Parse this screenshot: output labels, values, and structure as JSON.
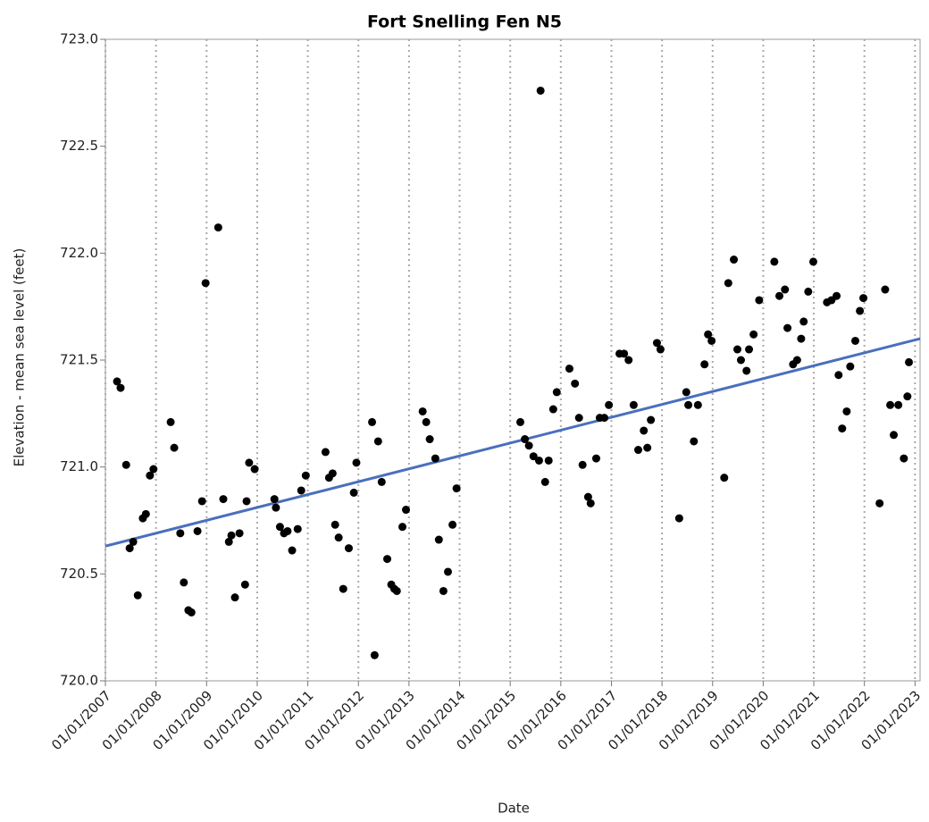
{
  "chart_data": {
    "type": "scatter",
    "title": "Fort Snelling Fen N5",
    "xlabel": "Date",
    "ylabel": "Elevation - mean sea level (feet)",
    "color": "#000000",
    "x": [
      2007.23,
      2007.3,
      2007.41,
      2007.48,
      2007.55,
      2007.64,
      2007.74,
      2007.8,
      2007.88,
      2007.95,
      2008.29,
      2008.36,
      2008.48,
      2008.55,
      2008.64,
      2008.7,
      2008.82,
      2008.91,
      2008.98,
      2009.23,
      2009.33,
      2009.44,
      2009.49,
      2009.56,
      2009.65,
      2009.76,
      2009.79,
      2009.84,
      2009.95,
      2010.34,
      2010.37,
      2010.45,
      2010.53,
      2010.6,
      2010.69,
      2010.8,
      2010.87,
      2010.96,
      2011.35,
      2011.42,
      2011.49,
      2011.54,
      2011.61,
      2011.7,
      2011.81,
      2011.91,
      2011.96,
      2012.27,
      2012.32,
      2012.39,
      2012.46,
      2012.57,
      2012.65,
      2012.71,
      2012.76,
      2012.87,
      2012.94,
      2013.27,
      2013.34,
      2013.41,
      2013.52,
      2013.59,
      2013.68,
      2013.77,
      2013.86,
      2013.94,
      2015.2,
      2015.29,
      2015.37,
      2015.46,
      2015.57,
      2015.6,
      2015.69,
      2015.76,
      2015.85,
      2015.92,
      2016.17,
      2016.28,
      2016.36,
      2016.43,
      2016.54,
      2016.59,
      2016.7,
      2016.77,
      2016.86,
      2016.95,
      2017.16,
      2017.25,
      2017.34,
      2017.44,
      2017.53,
      2017.64,
      2017.71,
      2017.78,
      2017.9,
      2017.97,
      2018.34,
      2018.48,
      2018.52,
      2018.63,
      2018.71,
      2018.84,
      2018.91,
      2018.98,
      2019.23,
      2019.31,
      2019.42,
      2019.49,
      2019.56,
      2019.67,
      2019.72,
      2019.81,
      2019.92,
      2020.22,
      2020.32,
      2020.43,
      2020.48,
      2020.59,
      2020.67,
      2020.75,
      2020.8,
      2020.89,
      2020.99,
      2021.26,
      2021.35,
      2021.45,
      2021.49,
      2021.56,
      2021.65,
      2021.72,
      2021.82,
      2021.91,
      2021.98,
      2022.3,
      2022.41,
      2022.51,
      2022.58,
      2022.67,
      2022.78,
      2022.85,
      2022.88
    ],
    "values": [
      721.4,
      721.37,
      721.01,
      720.62,
      720.65,
      720.4,
      720.76,
      720.78,
      720.96,
      720.99,
      721.21,
      721.09,
      720.69,
      720.46,
      720.33,
      720.32,
      720.7,
      720.84,
      721.86,
      722.12,
      720.85,
      720.65,
      720.68,
      720.39,
      720.69,
      720.45,
      720.84,
      721.02,
      720.99,
      720.85,
      720.81,
      720.72,
      720.69,
      720.7,
      720.61,
      720.71,
      720.89,
      720.96,
      721.07,
      720.95,
      720.97,
      720.73,
      720.67,
      720.43,
      720.62,
      720.88,
      721.02,
      721.21,
      720.12,
      721.12,
      720.93,
      720.57,
      720.45,
      720.43,
      720.42,
      720.72,
      720.8,
      721.26,
      721.21,
      721.13,
      721.04,
      720.66,
      720.42,
      720.51,
      720.73,
      720.9,
      721.21,
      721.13,
      721.1,
      721.05,
      721.03,
      722.76,
      720.93,
      721.03,
      721.27,
      721.35,
      721.46,
      721.39,
      721.23,
      721.01,
      720.86,
      720.83,
      721.04,
      721.23,
      721.23,
      721.29,
      721.53,
      721.53,
      721.5,
      721.29,
      721.08,
      721.17,
      721.09,
      721.22,
      721.58,
      721.55,
      720.76,
      721.35,
      721.29,
      721.12,
      721.29,
      721.48,
      721.62,
      721.59,
      720.95,
      721.86,
      721.97,
      721.55,
      721.5,
      721.45,
      721.55,
      721.62,
      721.78,
      721.96,
      721.8,
      721.83,
      721.65,
      721.48,
      721.5,
      721.6,
      721.68,
      721.82,
      721.96,
      721.77,
      721.78,
      721.8,
      721.43,
      721.18,
      721.26,
      721.47,
      721.59,
      721.73,
      721.79,
      720.83,
      721.83,
      721.29,
      721.15,
      721.29,
      721.04,
      721.33,
      721.49
    ],
    "trend_line": {
      "color": "#4a6fbd",
      "x": [
        2007,
        2023.1
      ],
      "values": [
        720.63,
        721.6
      ]
    },
    "xlim": [
      2007,
      2023.1
    ],
    "ylim": [
      720.0,
      723.0
    ],
    "xticks": [
      {
        "value": 2007,
        "label": "01/01/2007"
      },
      {
        "value": 2008,
        "label": "01/01/2008"
      },
      {
        "value": 2009,
        "label": "01/01/2009"
      },
      {
        "value": 2010,
        "label": "01/01/2010"
      },
      {
        "value": 2011,
        "label": "01/01/2011"
      },
      {
        "value": 2012,
        "label": "01/01/2012"
      },
      {
        "value": 2013,
        "label": "01/01/2013"
      },
      {
        "value": 2014,
        "label": "01/01/2014"
      },
      {
        "value": 2015,
        "label": "01/01/2015"
      },
      {
        "value": 2016,
        "label": "01/01/2016"
      },
      {
        "value": 2017,
        "label": "01/01/2017"
      },
      {
        "value": 2018,
        "label": "01/01/2018"
      },
      {
        "value": 2019,
        "label": "01/01/2019"
      },
      {
        "value": 2020,
        "label": "01/01/2020"
      },
      {
        "value": 2021,
        "label": "01/01/2021"
      },
      {
        "value": 2022,
        "label": "01/01/2022"
      },
      {
        "value": 2023,
        "label": "01/01/2023"
      }
    ],
    "yticks": [
      {
        "value": 720,
        "label": "720.0"
      },
      720.5,
      {
        "value": 721,
        "label": "721.0"
      },
      721.5,
      {
        "value": 722,
        "label": "722.0"
      },
      722.5,
      {
        "value": 723,
        "label": "723.0"
      }
    ],
    "xgrid": true
  }
}
